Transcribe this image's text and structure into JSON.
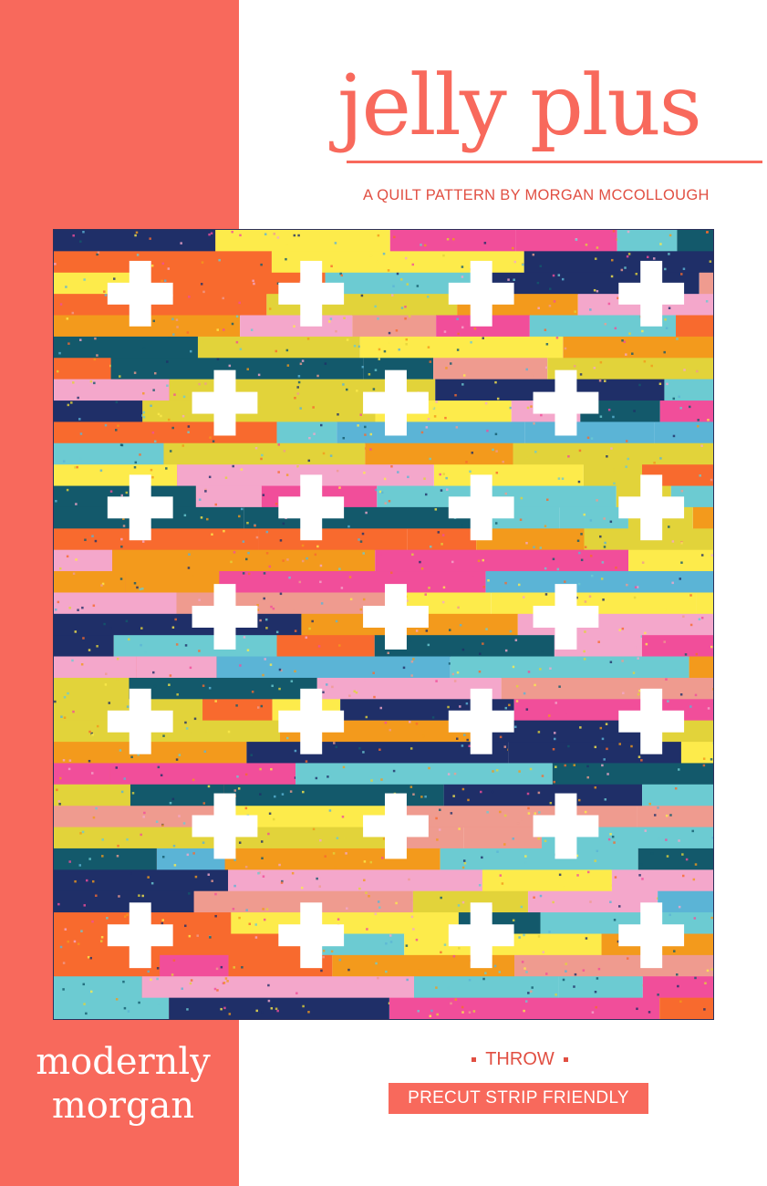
{
  "title": "jelly plus",
  "subtitle": "A QUILT PATTERN BY MORGAN MCCOLLOUGH",
  "brand": {
    "line1": "modernly",
    "line2": "morgan"
  },
  "size": "THROW",
  "tag": "PRECUT STRIP FRIENDLY",
  "colors": {
    "accent": "#f8695c",
    "quilt_palette": [
      "#f4a7cb",
      "#6ccbd2",
      "#e2d33a",
      "#f86a2e",
      "#f14e9a",
      "#13596b",
      "#1f2f68",
      "#fdeb4b",
      "#ef9b8f",
      "#f39a1c",
      "#5bb4d6"
    ],
    "cross": "#ffffff"
  }
}
